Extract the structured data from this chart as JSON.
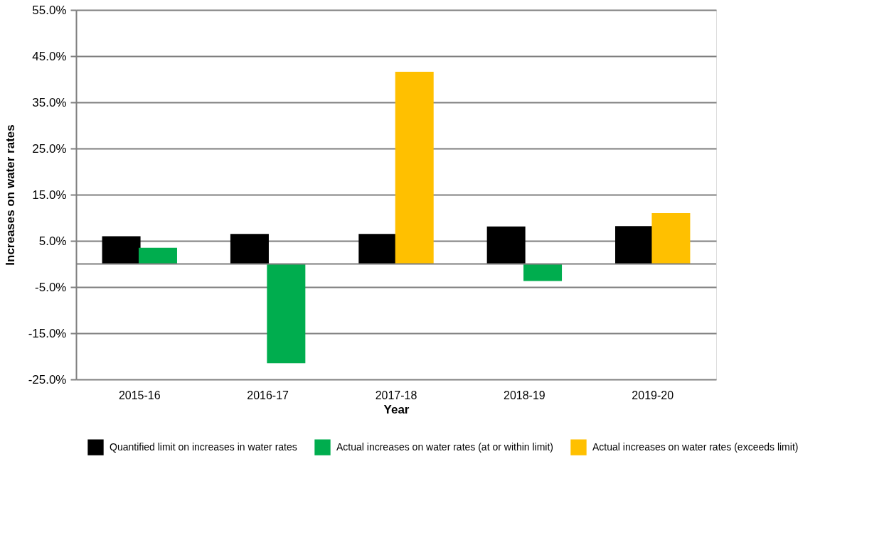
{
  "chart_data": {
    "type": "bar",
    "xlabel": "Year",
    "ylabel": "Increases on water rates",
    "categories": [
      "2015-16",
      "2016-17",
      "2017-18",
      "2018-19",
      "2019-20"
    ],
    "series": [
      {
        "name": "Quantified limit on increases in water rates",
        "color": "#000000",
        "values": [
          6.0,
          6.5,
          6.5,
          8.1,
          8.2
        ]
      },
      {
        "name": "Actual increases on water rates (at or within limit)",
        "color": "#00ad4e",
        "values": [
          3.5,
          -21.5,
          null,
          -3.7,
          null
        ]
      },
      {
        "name": "Actual increases on water rates (exceeds limit)",
        "color": "#ffc000",
        "values": [
          null,
          null,
          41.6,
          null,
          11.0
        ]
      }
    ],
    "ylim": [
      -25,
      55
    ],
    "yticks": [
      {
        "value": -25,
        "label": "-25.0%"
      },
      {
        "value": -15,
        "label": "-15.0%"
      },
      {
        "value": -5,
        "label": "-5.0%"
      },
      {
        "value": 5,
        "label": "5.0%"
      },
      {
        "value": 15,
        "label": "15.0%"
      },
      {
        "value": 25,
        "label": "25.0%"
      },
      {
        "value": 35,
        "label": "35.0%"
      },
      {
        "value": 45,
        "label": "45.0%"
      },
      {
        "value": 55,
        "label": "55.0%"
      }
    ],
    "grid": "y",
    "legend": "bottom"
  }
}
